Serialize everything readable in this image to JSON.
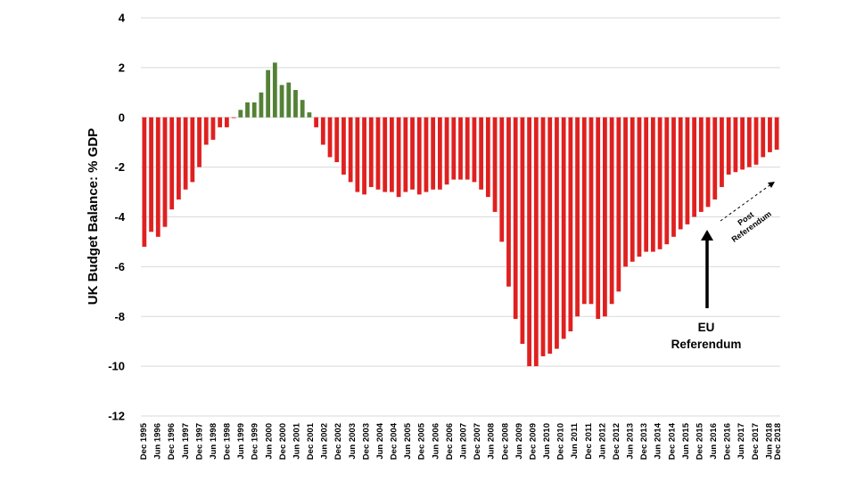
{
  "chart_data": {
    "type": "bar",
    "title": "",
    "xlabel": "",
    "ylabel": "UK Budget Balance: % GDP",
    "ylim": [
      -12,
      4
    ],
    "yticks": [
      4,
      2,
      0,
      -2,
      -4,
      -6,
      -8,
      -10,
      -12
    ],
    "grid": true,
    "legend": "none",
    "colors": {
      "positive": "#538135",
      "negative": "#e02020"
    },
    "x_tick_labels": [
      "Dec 1995",
      "Jun 1996",
      "Dec 1996",
      "Jun 1997",
      "Dec 1997",
      "Jun 1998",
      "Dec 1998",
      "Jun 1999",
      "Dec 1999",
      "Jun 2000",
      "Dec 2000",
      "Jun 2001",
      "Dec 2001",
      "Jun 2002",
      "Dec 2002",
      "Jun 2003",
      "Dec 2003",
      "Jun 2004",
      "Dec 2004",
      "Jun 2005",
      "Dec 2005",
      "Jun 2006",
      "Dec 2006",
      "Jun 2007",
      "Dec 2007",
      "Jun 2008",
      "Dec 2008",
      "Jun 2009",
      "Dec 2009",
      "Jun 2010",
      "Dec 2010",
      "Jun 2011",
      "Dec 2011",
      "Jun 2012",
      "Dec 2012",
      "Jun 2013",
      "Dec 2013",
      "Jun 2014",
      "Dec 2014",
      "Jun 2015",
      "Dec 2015",
      "Jun 2016",
      "Dec 2016",
      "Jun 2017",
      "Dec 2017",
      "Jun 2018",
      "Dec 2018"
    ],
    "values": [
      -5.2,
      -4.6,
      -4.8,
      -4.4,
      -3.7,
      -3.3,
      -2.9,
      -2.6,
      -2.0,
      -1.1,
      -0.9,
      -0.4,
      -0.4,
      0.0,
      0.3,
      0.6,
      0.6,
      1.0,
      1.9,
      2.2,
      1.3,
      1.4,
      1.1,
      0.7,
      0.2,
      -0.4,
      -1.1,
      -1.6,
      -1.8,
      -2.3,
      -2.6,
      -3.0,
      -3.1,
      -2.8,
      -2.9,
      -3.0,
      -3.0,
      -3.2,
      -3.0,
      -2.9,
      -3.1,
      -3.0,
      -2.9,
      -2.9,
      -2.7,
      -2.5,
      -2.5,
      -2.5,
      -2.6,
      -2.9,
      -3.2,
      -3.8,
      -5.0,
      -6.8,
      -8.1,
      -9.1,
      -10.0,
      -10.0,
      -9.6,
      -9.5,
      -9.3,
      -8.9,
      -8.6,
      -8.0,
      -7.5,
      -7.5,
      -8.1,
      -8.0,
      -7.5,
      -7.0,
      -6.0,
      -5.8,
      -5.6,
      -5.4,
      -5.4,
      -5.3,
      -5.1,
      -4.8,
      -4.5,
      -4.3,
      -4.0,
      -3.8,
      -3.6,
      -3.3,
      -2.8,
      -2.3,
      -2.2,
      -2.1,
      -2.0,
      -1.9,
      -1.6,
      -1.4,
      -1.3
    ]
  },
  "annotations": {
    "eu_referendum_line1": "EU",
    "eu_referendum_line2": "Referendum",
    "post_referendum_line1": "Post",
    "post_referendum_line2": "Referendum"
  }
}
